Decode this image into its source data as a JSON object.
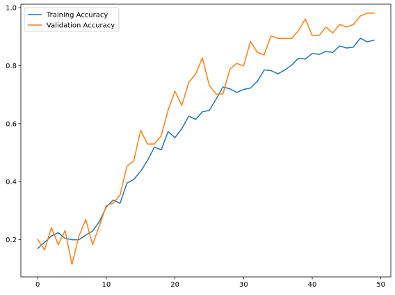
{
  "chart_data": {
    "type": "line",
    "title": "",
    "xlabel": "",
    "ylabel": "",
    "xlim": [
      -2.45,
      51.45
    ],
    "ylim": [
      0.072,
      1.012
    ],
    "xticks": [
      0,
      10,
      20,
      30,
      40,
      50
    ],
    "xtick_labels": [
      "0",
      "10",
      "20",
      "30",
      "40",
      "50"
    ],
    "yticks": [
      0.2,
      0.4,
      0.6,
      0.8,
      1.0
    ],
    "ytick_labels": [
      "0.2",
      "0.4",
      "0.6",
      "0.8",
      "1.0"
    ],
    "grid": false,
    "legend": {
      "placement": "top-left"
    },
    "x": [
      0,
      1,
      2,
      3,
      4,
      5,
      6,
      7,
      8,
      9,
      10,
      11,
      12,
      13,
      14,
      15,
      16,
      17,
      18,
      19,
      20,
      21,
      22,
      23,
      24,
      25,
      26,
      27,
      28,
      29,
      30,
      31,
      32,
      33,
      34,
      35,
      36,
      37,
      38,
      39,
      40,
      41,
      42,
      43,
      44,
      45,
      46,
      47,
      48,
      49
    ],
    "series": [
      {
        "name": "Training Accuracy",
        "color": "#1f77b4",
        "values": [
          0.17,
          0.191,
          0.213,
          0.224,
          0.205,
          0.2,
          0.2,
          0.216,
          0.23,
          0.263,
          0.313,
          0.337,
          0.326,
          0.395,
          0.408,
          0.436,
          0.473,
          0.519,
          0.51,
          0.573,
          0.552,
          0.583,
          0.626,
          0.615,
          0.641,
          0.646,
          0.685,
          0.727,
          0.72,
          0.708,
          0.718,
          0.723,
          0.746,
          0.785,
          0.783,
          0.772,
          0.785,
          0.802,
          0.826,
          0.823,
          0.842,
          0.839,
          0.849,
          0.846,
          0.868,
          0.861,
          0.864,
          0.895,
          0.882,
          0.888
        ]
      },
      {
        "name": "Validation Accuracy",
        "color": "#ff7f0e",
        "values": [
          0.201,
          0.165,
          0.242,
          0.183,
          0.232,
          0.115,
          0.212,
          0.27,
          0.183,
          0.249,
          0.318,
          0.326,
          0.354,
          0.453,
          0.472,
          0.577,
          0.53,
          0.53,
          0.558,
          0.647,
          0.712,
          0.663,
          0.742,
          0.771,
          0.827,
          0.732,
          0.702,
          0.703,
          0.788,
          0.808,
          0.799,
          0.884,
          0.846,
          0.837,
          0.903,
          0.894,
          0.894,
          0.894,
          0.921,
          0.961,
          0.904,
          0.904,
          0.933,
          0.913,
          0.942,
          0.933,
          0.942,
          0.971,
          0.981,
          0.981
        ]
      }
    ]
  }
}
